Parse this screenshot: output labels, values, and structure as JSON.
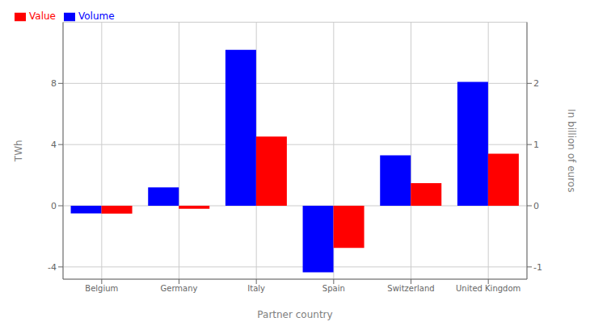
{
  "chart_data": {
    "type": "bar",
    "categories": [
      "Belgium",
      "Germany",
      "Italy",
      "Spain",
      "Switzerland",
      "United Kingdom"
    ],
    "series": [
      {
        "name": "Volume",
        "color": "#0000FF",
        "values": [
          -0.5,
          1.2,
          10.2,
          -4.35,
          3.3,
          8.1
        ]
      },
      {
        "name": "Value",
        "color": "#FF0000",
        "axis": "y2",
        "values": [
          -0.13,
          -0.05,
          1.13,
          -0.69,
          0.37,
          0.85
        ]
      }
    ],
    "xlabel": "Partner country",
    "ylabel": "TWh",
    "y2label": "In billion of euros",
    "ylim": [
      -4.8,
      12.0
    ],
    "yticks": [
      -4,
      0,
      4,
      8
    ],
    "y2lim": [
      -1.2,
      3.0
    ],
    "y2ticks": [
      -1,
      0,
      1,
      2
    ],
    "grid": true,
    "legend": "upper left"
  }
}
